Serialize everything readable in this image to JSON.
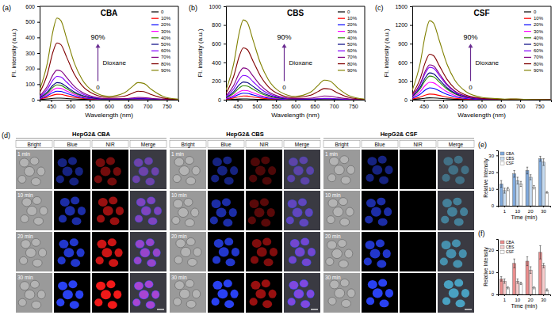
{
  "chart_data": [
    {
      "type": "line",
      "panel": "(a)",
      "title": "CBA",
      "x_label": "Wavelength (nm)",
      "y_label": "Fl. intensity (a.u.)",
      "x": [
        420,
        440,
        455,
        465,
        475,
        490,
        510,
        530,
        560,
        600,
        640,
        660,
        675,
        690,
        710,
        740,
        780
      ],
      "xlim": [
        420,
        780
      ],
      "xticks": [
        450,
        500,
        550,
        600,
        650,
        700,
        750
      ],
      "ylim": [
        0,
        600
      ],
      "yticks": [
        0,
        100,
        200,
        300,
        400,
        500,
        600
      ],
      "legend": "upper right",
      "annotations": [
        "90%",
        "0",
        "Dioxane"
      ],
      "series": [
        {
          "name": "0",
          "color": "#000000",
          "values": [
            1,
            5,
            9,
            10,
            10,
            8,
            5,
            3,
            1,
            0,
            1,
            2,
            2,
            2,
            1,
            0,
            0
          ]
        },
        {
          "name": "10%",
          "color": "#ff0000",
          "values": [
            4,
            16,
            30,
            35,
            34,
            26,
            16,
            9,
            4,
            1,
            1,
            2,
            3,
            3,
            2,
            1,
            0
          ]
        },
        {
          "name": "20%",
          "color": "#0000ff",
          "values": [
            7,
            25,
            47,
            55,
            53,
            41,
            25,
            14,
            6,
            2,
            2,
            3,
            4,
            4,
            2,
            1,
            0
          ]
        },
        {
          "name": "30%",
          "color": "#ff00ff",
          "values": [
            9,
            34,
            64,
            75,
            73,
            56,
            34,
            19,
            8,
            3,
            3,
            4,
            5,
            5,
            3,
            1,
            0
          ]
        },
        {
          "name": "40%",
          "color": "#2e8b00",
          "values": [
            11,
            43,
            81,
            95,
            92,
            71,
            43,
            24,
            10,
            3,
            3,
            5,
            6,
            6,
            4,
            1,
            0
          ]
        },
        {
          "name": "50%",
          "color": "#000080",
          "values": [
            13,
            50,
            94,
            110,
            107,
            83,
            50,
            28,
            11,
            4,
            4,
            6,
            8,
            8,
            5,
            2,
            0
          ]
        },
        {
          "name": "60%",
          "color": "#8000ff",
          "values": [
            18,
            68,
            128,
            150,
            146,
            113,
            68,
            38,
            15,
            5,
            5,
            8,
            10,
            10,
            6,
            2,
            0
          ]
        },
        {
          "name": "70%",
          "color": "#800080",
          "values": [
            23,
            86,
            162,
            190,
            184,
            143,
            86,
            48,
            19,
            6,
            7,
            11,
            15,
            14,
            9,
            3,
            0
          ]
        },
        {
          "name": "80%",
          "color": "#800000",
          "values": [
            44,
            164,
            310,
            365,
            354,
            274,
            164,
            91,
            37,
            14,
            23,
            41,
            55,
            52,
            33,
            11,
            2
          ]
        },
        {
          "name": "90%",
          "color": "#808000",
          "values": [
            63,
            236,
            446,
            525,
            509,
            394,
            236,
            131,
            53,
            21,
            44,
            83,
            110,
            105,
            66,
            22,
            3
          ]
        }
      ]
    },
    {
      "type": "line",
      "panel": "(b)",
      "title": "CBS",
      "x_label": "Wavelength (nm)",
      "y_label": "Fl. intensity (a.u.)",
      "x": [
        420,
        440,
        455,
        465,
        475,
        490,
        510,
        530,
        560,
        600,
        640,
        660,
        675,
        690,
        710,
        740,
        780
      ],
      "xlim": [
        420,
        780
      ],
      "xticks": [
        450,
        500,
        550,
        600,
        650,
        700,
        750
      ],
      "ylim": [
        0,
        1000
      ],
      "yticks": [
        0,
        200,
        400,
        600,
        800,
        1000
      ],
      "legend": "upper right",
      "annotations": [
        "90%",
        "0",
        "Dioxane"
      ],
      "series": [
        {
          "name": "0",
          "color": "#000000",
          "values": [
            1,
            4,
            7,
            8,
            8,
            6,
            4,
            2,
            1,
            0,
            1,
            2,
            2,
            2,
            1,
            0,
            0
          ]
        },
        {
          "name": "10%",
          "color": "#ff0000",
          "values": [
            5,
            18,
            34,
            40,
            39,
            30,
            18,
            10,
            4,
            1,
            1,
            2,
            3,
            3,
            2,
            1,
            0
          ]
        },
        {
          "name": "20%",
          "color": "#0000ff",
          "values": [
            8,
            32,
            60,
            70,
            68,
            53,
            32,
            18,
            7,
            2,
            2,
            3,
            4,
            4,
            2,
            1,
            0
          ]
        },
        {
          "name": "30%",
          "color": "#ff00ff",
          "values": [
            12,
            45,
            85,
            100,
            97,
            75,
            45,
            25,
            10,
            3,
            3,
            5,
            6,
            6,
            4,
            1,
            0
          ]
        },
        {
          "name": "40%",
          "color": "#2e8b00",
          "values": [
            18,
            68,
            128,
            150,
            146,
            113,
            68,
            38,
            15,
            5,
            4,
            6,
            8,
            8,
            5,
            2,
            0
          ]
        },
        {
          "name": "50%",
          "color": "#000080",
          "values": [
            23,
            86,
            162,
            190,
            184,
            143,
            86,
            48,
            19,
            6,
            5,
            8,
            10,
            10,
            6,
            2,
            0
          ]
        },
        {
          "name": "60%",
          "color": "#8000ff",
          "values": [
            31,
            117,
            221,
            260,
            252,
            195,
            117,
            65,
            26,
            9,
            8,
            11,
            15,
            14,
            9,
            3,
            0
          ]
        },
        {
          "name": "70%",
          "color": "#800080",
          "values": [
            41,
            153,
            289,
            340,
            330,
            255,
            153,
            85,
            34,
            12,
            17,
            30,
            40,
            38,
            24,
            8,
            1
          ]
        },
        {
          "name": "80%",
          "color": "#800000",
          "values": [
            67,
            250,
            472,
            555,
            538,
            416,
            250,
            139,
            56,
            23,
            48,
            90,
            120,
            114,
            72,
            24,
            4
          ]
        },
        {
          "name": "90%",
          "color": "#808000",
          "values": [
            103,
            385,
            727,
            855,
            829,
            641,
            385,
            214,
            86,
            36,
            82,
            158,
            210,
            200,
            126,
            42,
            6
          ]
        }
      ]
    },
    {
      "type": "line",
      "panel": "(c)",
      "title": "CSF",
      "x_label": "Wavelength (nm)",
      "y_label": "Fl. intensity (a.u.)",
      "x": [
        420,
        440,
        455,
        465,
        475,
        490,
        510,
        530,
        560,
        600,
        640,
        660,
        675,
        690,
        710,
        740,
        780
      ],
      "xlim": [
        420,
        780
      ],
      "xticks": [
        450,
        500,
        550,
        600,
        650,
        700,
        750
      ],
      "ylim": [
        0,
        1500
      ],
      "yticks": [
        0,
        300,
        600,
        900,
        1200,
        1500
      ],
      "legend": "upper right",
      "annotations": [
        "90%",
        "0",
        "Dioxane"
      ],
      "series": [
        {
          "name": "0",
          "color": "#000000",
          "values": [
            4,
            14,
            26,
            30,
            29,
            23,
            14,
            8,
            3,
            1,
            1,
            1,
            1,
            1,
            1,
            0,
            0
          ]
        },
        {
          "name": "10%",
          "color": "#ff0000",
          "values": [
            11,
            41,
            77,
            90,
            87,
            68,
            41,
            23,
            9,
            3,
            2,
            2,
            2,
            2,
            1,
            0,
            0
          ]
        },
        {
          "name": "20%",
          "color": "#0000ff",
          "values": [
            23,
            86,
            162,
            190,
            184,
            143,
            86,
            48,
            19,
            6,
            3,
            2,
            3,
            3,
            2,
            1,
            0
          ]
        },
        {
          "name": "30%",
          "color": "#ff00ff",
          "values": [
            34,
            126,
            238,
            280,
            272,
            210,
            126,
            70,
            28,
            9,
            4,
            2,
            3,
            3,
            2,
            1,
            0
          ]
        },
        {
          "name": "40%",
          "color": "#2e8b00",
          "values": [
            46,
            171,
            323,
            380,
            369,
            285,
            171,
            95,
            38,
            12,
            5,
            3,
            4,
            4,
            2,
            1,
            0
          ]
        },
        {
          "name": "50%",
          "color": "#000080",
          "values": [
            52,
            194,
            366,
            430,
            417,
            323,
            194,
            108,
            43,
            13,
            6,
            4,
            5,
            5,
            3,
            1,
            0
          ]
        },
        {
          "name": "60%",
          "color": "#8000ff",
          "values": [
            62,
            234,
            442,
            520,
            504,
            390,
            234,
            130,
            52,
            16,
            7,
            4,
            5,
            5,
            3,
            1,
            0
          ]
        },
        {
          "name": "70%",
          "color": "#800080",
          "values": [
            67,
            252,
            476,
            560,
            543,
            420,
            252,
            140,
            56,
            17,
            8,
            5,
            6,
            6,
            4,
            1,
            0
          ]
        },
        {
          "name": "80%",
          "color": "#800000",
          "values": [
            88,
            329,
            621,
            730,
            708,
            548,
            329,
            183,
            73,
            22,
            10,
            6,
            8,
            8,
            5,
            2,
            0
          ]
        },
        {
          "name": "90%",
          "color": "#808000",
          "values": [
            152,
            572,
            1080,
            1270,
            1232,
            953,
            572,
            318,
            127,
            39,
            17,
            9,
            12,
            11,
            7,
            2,
            0
          ]
        }
      ]
    },
    {
      "type": "bar",
      "panel": "(e)",
      "x_label": "Time (min)",
      "y_label": "Relative Intensity",
      "categories": [
        "1",
        "10",
        "20",
        "30"
      ],
      "ylim": [
        0,
        33
      ],
      "yticks": [
        0,
        10,
        20,
        30
      ],
      "legend": "upper left",
      "series": [
        {
          "name": "CBA",
          "color": "#7fa9dc",
          "values": [
            13,
            19,
            21,
            28
          ],
          "errors": [
            2,
            2,
            2,
            1.5
          ]
        },
        {
          "name": "CBS",
          "color": "#c6dbf0",
          "values": [
            9,
            15,
            17,
            26
          ],
          "errors": [
            1.5,
            2,
            1.5,
            2
          ]
        },
        {
          "name": "CSF",
          "color": "#ffffff",
          "values": [
            10,
            13,
            11,
            8
          ],
          "errors": [
            1,
            1.5,
            1,
            0.5
          ]
        }
      ]
    },
    {
      "type": "bar",
      "panel": "(f)",
      "x_label": "Time (min)",
      "y_label": "Relative Intensity",
      "categories": [
        "1",
        "10",
        "20",
        "30"
      ],
      "ylim": [
        0,
        25
      ],
      "yticks": [
        0,
        10,
        20
      ],
      "legend": "upper left",
      "series": [
        {
          "name": "CBA",
          "color": "#eb8d8d",
          "values": [
            7,
            14,
            15,
            19
          ],
          "errors": [
            1,
            2,
            2,
            3
          ]
        },
        {
          "name": "CBS",
          "color": "#f7cccc",
          "values": [
            6,
            6,
            11,
            13
          ],
          "errors": [
            1,
            1,
            1.5,
            1
          ]
        },
        {
          "name": "CSF",
          "color": "#ffffff",
          "values": [
            3,
            5,
            3,
            2
          ],
          "errors": [
            0.5,
            0.5,
            0.5,
            0.5
          ]
        }
      ]
    }
  ],
  "micrographs": {
    "panel": "(d)",
    "groups": [
      "HepG2& CBA",
      "HepG2& CBS",
      "HepG2& CSF"
    ],
    "columns": [
      "Bright",
      "Blue",
      "NIR",
      "Merge"
    ],
    "rows": [
      "1 min",
      "10 min",
      "20 min",
      "30 min"
    ]
  }
}
